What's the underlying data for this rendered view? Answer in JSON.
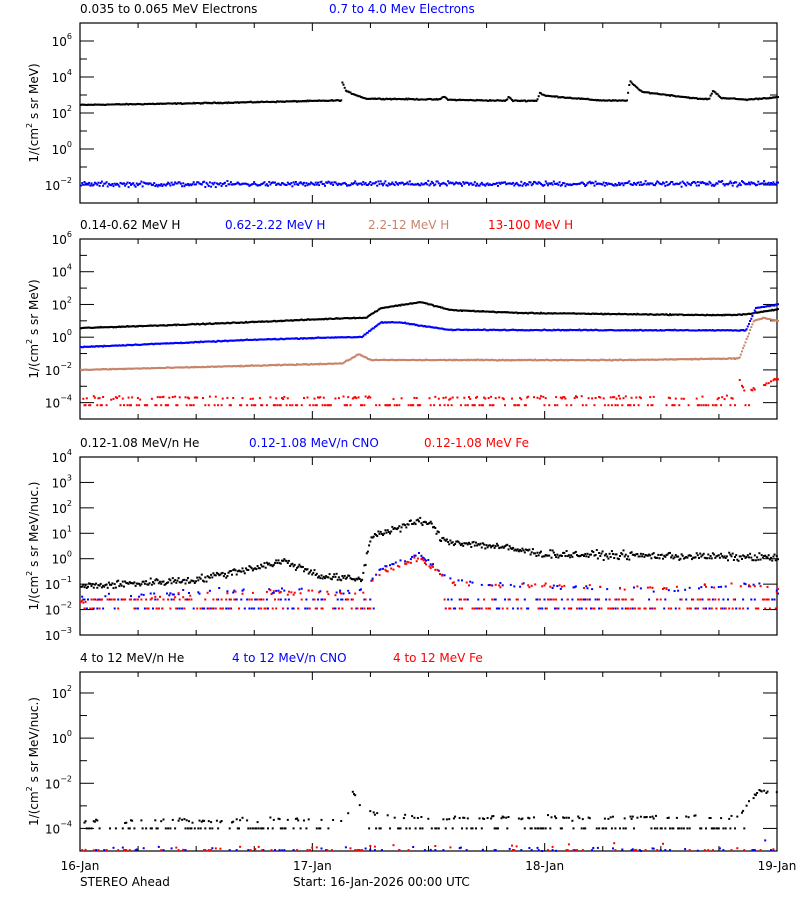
{
  "footer": {
    "spacecraft": "STEREO Ahead",
    "start": "Start: 16-Jan-2026 00:00 UTC"
  },
  "x_axis": {
    "range": [
      "2026-01-16T00:00",
      "2026-01-19T00:00"
    ],
    "tick_labels": [
      "16-Jan",
      "17-Jan",
      "18-Jan",
      "19-Jan"
    ],
    "minor_tick_hours": 6
  },
  "chart_data": [
    {
      "type": "scatter",
      "ylabel": {
        "pre": "1/(cm",
        "sup": "2",
        "post": " s sr MeV)"
      },
      "yscale": "log",
      "ylim": [
        0.001,
        10000000.0
      ],
      "ytick_exponents": [
        6,
        4,
        2,
        0,
        -2
      ],
      "series": [
        {
          "name": "0.035 to 0.065 MeV Electrons",
          "color": "#000000",
          "style": "continuous",
          "points": [
            [
              "2026-01-16T00:00",
              280
            ],
            [
              "2026-01-16T12:24",
              350
            ],
            [
              "2026-01-17T02:54",
              500
            ],
            [
              "2026-01-17T03:00",
              5000
            ],
            [
              "2026-01-17T03:24",
              1600
            ],
            [
              "2026-01-17T05:24",
              630
            ],
            [
              "2026-01-17T13:00",
              560
            ],
            [
              "2026-01-17T13:30",
              800
            ],
            [
              "2026-01-17T14:00",
              540
            ],
            [
              "2026-01-17T19:54",
              480
            ],
            [
              "2026-01-17T20:12",
              800
            ],
            [
              "2026-01-17T20:36",
              480
            ],
            [
              "2026-01-17T23:06",
              480
            ],
            [
              "2026-01-17T23:24",
              1300
            ],
            [
              "2026-01-18T00:00",
              900
            ],
            [
              "2026-01-18T05:42",
              500
            ],
            [
              "2026-01-18T08:24",
              480
            ],
            [
              "2026-01-18T08:42",
              6000
            ],
            [
              "2026-01-18T09:54",
              1500
            ],
            [
              "2026-01-18T16:00",
              600
            ],
            [
              "2026-01-18T16:54",
              600
            ],
            [
              "2026-01-18T17:18",
              1800
            ],
            [
              "2026-01-18T18:06",
              700
            ],
            [
              "2026-01-18T20:42",
              550
            ],
            [
              "2026-01-19T00:00",
              750
            ]
          ]
        },
        {
          "name": "0.7 to 4.0 Mev Electrons",
          "color": "#0000ff",
          "style": "noisy",
          "points": [
            [
              "2026-01-16T00:00",
              0.011
            ],
            [
              "2026-01-19T00:00",
              0.012
            ]
          ]
        }
      ]
    },
    {
      "type": "scatter",
      "ylabel": {
        "pre": "1/(cm",
        "sup": "2",
        "post": " s sr MeV)"
      },
      "yscale": "log",
      "ylim": [
        1e-05,
        1000000.0
      ],
      "ytick_exponents": [
        6,
        4,
        2,
        0,
        -2,
        -4
      ],
      "series": [
        {
          "name": "0.14-0.62 MeV H",
          "color": "#000000",
          "style": "continuous",
          "points": [
            [
              "2026-01-16T00:00",
              3.6
            ],
            [
              "2026-01-16T14:30",
              7
            ],
            [
              "2026-01-17T03:54",
              15
            ],
            [
              "2026-01-17T05:24",
              15
            ],
            [
              "2026-01-17T07:00",
              60
            ],
            [
              "2026-01-17T11:06",
              140
            ],
            [
              "2026-01-17T14:12",
              45
            ],
            [
              "2026-01-17T21:30",
              30
            ],
            [
              "2026-01-18T18:06",
              22
            ],
            [
              "2026-01-18T20:42",
              25
            ],
            [
              "2026-01-19T00:00",
              50
            ]
          ]
        },
        {
          "name": "0.62-2.22 MeV H",
          "color": "#0000ff",
          "style": "continuous",
          "points": [
            [
              "2026-01-16T00:00",
              0.25
            ],
            [
              "2026-01-16T18:00",
              0.7
            ],
            [
              "2026-01-17T03:00",
              1.0
            ],
            [
              "2026-01-17T05:00",
              1.0
            ],
            [
              "2026-01-17T07:00",
              8
            ],
            [
              "2026-01-17T09:00",
              8
            ],
            [
              "2026-01-17T14:00",
              2.8
            ],
            [
              "2026-01-18T20:42",
              2.6
            ],
            [
              "2026-01-18T21:42",
              60
            ],
            [
              "2026-01-19T00:00",
              100
            ]
          ]
        },
        {
          "name": "2.2-12 MeV H",
          "color": "#c8846a",
          "style": "continuous",
          "points": [
            [
              "2026-01-16T00:00",
              0.01
            ],
            [
              "2026-01-16T18:00",
              0.018
            ],
            [
              "2026-01-17T03:00",
              0.025
            ],
            [
              "2026-01-17T04:42",
              0.09
            ],
            [
              "2026-01-17T06:00",
              0.04
            ],
            [
              "2026-01-18T08:00",
              0.04
            ],
            [
              "2026-01-18T20:00",
              0.05
            ],
            [
              "2026-01-18T21:30",
              10
            ],
            [
              "2026-01-18T22:30",
              15
            ],
            [
              "2026-01-19T00:00",
              10
            ]
          ]
        },
        {
          "name": "13-100 MeV H",
          "color": "#ff0000",
          "style": "sparse",
          "baseline_levels": [
            7e-05
          ],
          "points": [
            [
              "2026-01-16T00:00",
              0.0002
            ],
            [
              "2026-01-18T19:30",
              0.0002
            ],
            [
              "2026-01-18T20:00",
              0.0025
            ],
            [
              "2026-01-18T20:40",
              0.0004
            ],
            [
              "2026-01-19T00:00",
              0.003
            ]
          ]
        }
      ]
    },
    {
      "type": "scatter",
      "ylabel": {
        "pre": "1/(cm",
        "sup": "2",
        "post": " s sr MeV/nuc.)"
      },
      "yscale": "log",
      "ylim": [
        0.001,
        10000.0
      ],
      "ytick_exponents": [
        4,
        3,
        2,
        1,
        0,
        -1,
        -2,
        -3
      ],
      "series": [
        {
          "name": "0.12-1.08 MeV/n He",
          "color": "#000000",
          "style": "noisy",
          "points": [
            [
              "2026-01-16T00:00",
              0.08
            ],
            [
              "2026-01-16T12:00",
              0.15
            ],
            [
              "2026-01-16T21:00",
              0.8
            ],
            [
              "2026-01-17T01:00",
              0.2
            ],
            [
              "2026-01-17T05:00",
              0.15
            ],
            [
              "2026-01-17T06:00",
              8
            ],
            [
              "2026-01-17T08:30",
              15
            ],
            [
              "2026-01-17T11:00",
              30
            ],
            [
              "2026-01-17T12:00",
              25
            ],
            [
              "2026-01-17T13:30",
              5
            ],
            [
              "2026-01-17T19:00",
              3
            ],
            [
              "2026-01-18T00:00",
              1.5
            ],
            [
              "2026-01-19T00:00",
              1.1
            ]
          ]
        },
        {
          "name": "0.12-1.08 MeV/n CNO",
          "color": "#0000ff",
          "style": "sparse",
          "baseline_levels": [
            0.025,
            0.011
          ],
          "points": [
            [
              "2026-01-16T00:00",
              0.03
            ],
            [
              "2026-01-16T18:00",
              0.06
            ],
            [
              "2026-01-17T05:00",
              0.05
            ],
            [
              "2026-01-17T07:00",
              0.4
            ],
            [
              "2026-01-17T11:00",
              1.5
            ],
            [
              "2026-01-17T12:30",
              0.5
            ],
            [
              "2026-01-17T14:00",
              0.15
            ],
            [
              "2026-01-17T18:00",
              0.1
            ],
            [
              "2026-01-18T12:00",
              0.06
            ],
            [
              "2026-01-18T22:00",
              0.1
            ],
            [
              "2026-01-19T00:00",
              0.05
            ]
          ]
        },
        {
          "name": "0.12-1.08 MeV Fe",
          "color": "#ff0000",
          "style": "sparse",
          "baseline_levels": [
            0.025,
            0.011
          ],
          "points": [
            [
              "2026-01-16T00:00",
              0.02
            ],
            [
              "2026-01-16T18:00",
              0.05
            ],
            [
              "2026-01-17T05:00",
              0.04
            ],
            [
              "2026-01-17T07:00",
              0.3
            ],
            [
              "2026-01-17T11:00",
              1.0
            ],
            [
              "2026-01-17T12:30",
              0.4
            ],
            [
              "2026-01-17T14:00",
              0.12
            ],
            [
              "2026-01-17T18:00",
              0.09
            ],
            [
              "2026-01-18T12:00",
              0.07
            ],
            [
              "2026-01-18T22:00",
              0.09
            ],
            [
              "2026-01-19T00:00",
              0.05
            ]
          ]
        }
      ]
    },
    {
      "type": "scatter",
      "ylabel": {
        "pre": "1/(cm",
        "sup": "2",
        "post": " s sr MeV/nuc.)"
      },
      "yscale": "log",
      "ylim": [
        1e-05,
        850
      ],
      "ytick_exponents": [
        2,
        0,
        -2,
        -4
      ],
      "series": [
        {
          "name": "4 to 12 MeV/n He",
          "color": "#000000",
          "style": "sparse",
          "baseline_levels": [
            0.0001
          ],
          "points": [
            [
              "2026-01-16T00:00",
              0.0002
            ],
            [
              "2026-01-17T03:30",
              0.00025
            ],
            [
              "2026-01-17T04:00",
              0.005
            ],
            [
              "2026-01-17T05:00",
              0.0008
            ],
            [
              "2026-01-17T08:00",
              0.0003
            ],
            [
              "2026-01-18T20:00",
              0.0003
            ],
            [
              "2026-01-18T21:00",
              0.0015
            ],
            [
              "2026-01-18T22:00",
              0.0045
            ],
            [
              "2026-01-19T00:00",
              0.0035
            ]
          ]
        },
        {
          "name": "4 to 12 MeV/n CNO",
          "color": "#0000ff",
          "style": "rare",
          "baseline_levels": [
            1.1e-05
          ],
          "points": [
            [
              "2026-01-16T00:00",
              1.2e-05
            ],
            [
              "2026-01-17T03:30",
              1.2e-05
            ],
            [
              "2026-01-17T04:00",
              5e-05
            ],
            [
              "2026-01-17T05:00",
              1.2e-05
            ],
            [
              "2026-01-18T12:00",
              1.2e-05
            ],
            [
              "2026-01-18T13:00",
              5e-05
            ],
            [
              "2026-01-18T14:00",
              1.2e-05
            ],
            [
              "2026-01-18T21:00",
              1.2e-05
            ],
            [
              "2026-01-18T22:00",
              4e-05
            ],
            [
              "2026-01-19T00:00",
              1.2e-05
            ]
          ]
        },
        {
          "name": "4 to 12 MeV Fe",
          "color": "#ff0000",
          "style": "rare",
          "baseline_levels": [
            1.1e-05
          ],
          "points": [
            [
              "2026-01-16T00:00",
              1.1e-05
            ],
            [
              "2026-01-18T13:00",
              2e-05
            ],
            [
              "2026-01-19T00:00",
              1.1e-05
            ]
          ]
        }
      ]
    }
  ]
}
